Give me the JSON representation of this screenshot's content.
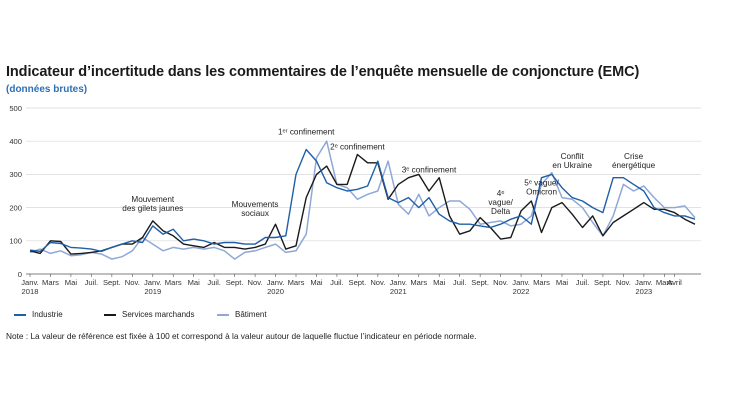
{
  "title": "Indicateur d’incertitude dans les commentaires de l’enquête mensuelle de conjoncture (EMC)",
  "subtitle": "(données brutes)",
  "note": "Note : La valeur de référence est fixée à 100 et correspond à la valeur autour de laquelle fluctue l’indicateur en période normale.",
  "colors": {
    "industrie": "#1f5fa8",
    "services": "#1a1a1a",
    "batiment": "#8fa8d8",
    "grid": "#d9d9d9"
  },
  "chart_data": {
    "type": "line",
    "title": "Indicateur d’incertitude dans les commentaires de l’enquête mensuelle de conjoncture (EMC)",
    "xlabel": "",
    "ylabel": "",
    "ylim": [
      0,
      500
    ],
    "yticks": [
      "0",
      "100",
      "200",
      "300",
      "400",
      "500"
    ],
    "grid": true,
    "legend_position": "bottom",
    "x_ticks": [
      {
        "index": 0,
        "line1": "Janv.",
        "line2": "2018"
      },
      {
        "index": 2,
        "line1": "Mars",
        "line2": ""
      },
      {
        "index": 4,
        "line1": "Mai",
        "line2": ""
      },
      {
        "index": 6,
        "line1": "Juil.",
        "line2": ""
      },
      {
        "index": 8,
        "line1": "Sept.",
        "line2": ""
      },
      {
        "index": 10,
        "line1": "Nov.",
        "line2": ""
      },
      {
        "index": 12,
        "line1": "Janv.",
        "line2": "2019"
      },
      {
        "index": 14,
        "line1": "Mars",
        "line2": ""
      },
      {
        "index": 16,
        "line1": "Mai",
        "line2": ""
      },
      {
        "index": 18,
        "line1": "Juil.",
        "line2": ""
      },
      {
        "index": 20,
        "line1": "Sept.",
        "line2": ""
      },
      {
        "index": 22,
        "line1": "Nov.",
        "line2": ""
      },
      {
        "index": 24,
        "line1": "Janv.",
        "line2": "2020"
      },
      {
        "index": 26,
        "line1": "Mars",
        "line2": ""
      },
      {
        "index": 28,
        "line1": "Mai",
        "line2": ""
      },
      {
        "index": 30,
        "line1": "Juil.",
        "line2": ""
      },
      {
        "index": 32,
        "line1": "Sept.",
        "line2": ""
      },
      {
        "index": 34,
        "line1": "Nov.",
        "line2": ""
      },
      {
        "index": 36,
        "line1": "Janv.",
        "line2": "2021"
      },
      {
        "index": 38,
        "line1": "Mars",
        "line2": ""
      },
      {
        "index": 40,
        "line1": "Mai",
        "line2": ""
      },
      {
        "index": 42,
        "line1": "Juil.",
        "line2": ""
      },
      {
        "index": 44,
        "line1": "Sept.",
        "line2": ""
      },
      {
        "index": 46,
        "line1": "Nov.",
        "line2": ""
      },
      {
        "index": 48,
        "line1": "Janv.",
        "line2": "2022"
      },
      {
        "index": 50,
        "line1": "Mars",
        "line2": ""
      },
      {
        "index": 52,
        "line1": "Mai",
        "line2": ""
      },
      {
        "index": 54,
        "line1": "Juil.",
        "line2": ""
      },
      {
        "index": 56,
        "line1": "Sept.",
        "line2": ""
      },
      {
        "index": 58,
        "line1": "Nov.",
        "line2": ""
      },
      {
        "index": 60,
        "line1": "Janv.",
        "line2": "2023"
      },
      {
        "index": 62,
        "line1": "Mars",
        "line2": ""
      },
      {
        "index": 63,
        "line1": "Avril",
        "line2": ""
      }
    ],
    "series": [
      {
        "name": "Industrie",
        "key": "industrie",
        "values": [
          72,
          68,
          95,
          92,
          80,
          78,
          75,
          68,
          80,
          90,
          100,
          95,
          145,
          120,
          135,
          100,
          105,
          100,
          90,
          95,
          95,
          90,
          90,
          110,
          110,
          115,
          300,
          375,
          340,
          275,
          260,
          250,
          255,
          265,
          340,
          230,
          215,
          230,
          200,
          230,
          180,
          160,
          150,
          150,
          145,
          140,
          150,
          165,
          175,
          150,
          290,
          300,
          260,
          230,
          220,
          200,
          185,
          290,
          290,
          270,
          250,
          200,
          185,
          175,
          175,
          165
        ]
      },
      {
        "name": "Services marchands",
        "key": "services",
        "values": [
          70,
          62,
          100,
          98,
          60,
          62,
          65,
          70,
          80,
          90,
          90,
          110,
          160,
          130,
          115,
          90,
          85,
          80,
          95,
          80,
          80,
          75,
          80,
          90,
          150,
          75,
          85,
          230,
          300,
          325,
          270,
          270,
          360,
          335,
          335,
          225,
          270,
          290,
          300,
          250,
          290,
          175,
          120,
          130,
          170,
          140,
          105,
          110,
          190,
          220,
          125,
          200,
          215,
          180,
          140,
          175,
          115,
          155,
          175,
          195,
          215,
          195,
          195,
          185,
          165,
          150
        ]
      },
      {
        "name": "Bâtiment",
        "key": "batiment",
        "values": [
          65,
          75,
          62,
          70,
          55,
          58,
          65,
          60,
          45,
          52,
          70,
          110,
          90,
          70,
          80,
          75,
          80,
          75,
          80,
          70,
          45,
          65,
          70,
          80,
          90,
          65,
          70,
          120,
          350,
          400,
          270,
          260,
          225,
          240,
          250,
          340,
          210,
          180,
          240,
          175,
          200,
          220,
          220,
          195,
          150,
          155,
          160,
          145,
          150,
          175,
          270,
          305,
          230,
          225,
          200,
          155,
          115,
          175,
          270,
          250,
          265,
          230,
          200,
          200,
          205,
          170
        ]
      }
    ],
    "annotations": [
      {
        "index": 12,
        "value": 190,
        "lines": [
          "Mouvement",
          "des gilets jaunes"
        ]
      },
      {
        "index": 22,
        "value": 175,
        "lines": [
          "Mouvements",
          "sociaux"
        ]
      },
      {
        "index": 27,
        "value": 420,
        "lines": [
          "1ᵉʳ confinement"
        ]
      },
      {
        "index": 32,
        "value": 375,
        "lines": [
          "2ᵉ confinement"
        ]
      },
      {
        "index": 39,
        "value": 305,
        "lines": [
          "3ᵉ confinement"
        ]
      },
      {
        "index": 46,
        "value": 180,
        "lines": [
          "4ᵉ",
          "vague/",
          "Delta"
        ]
      },
      {
        "index": 50,
        "value": 240,
        "lines": [
          "5ᵉ vague/",
          "Omicron"
        ]
      },
      {
        "index": 53,
        "value": 320,
        "lines": [
          "Conflit",
          "en Ukraine"
        ]
      },
      {
        "index": 59,
        "value": 320,
        "lines": [
          "Crise",
          "énergétique"
        ]
      }
    ]
  },
  "legend": {
    "industrie": "Industrie",
    "services": "Services marchands",
    "batiment": "Bâtiment"
  }
}
